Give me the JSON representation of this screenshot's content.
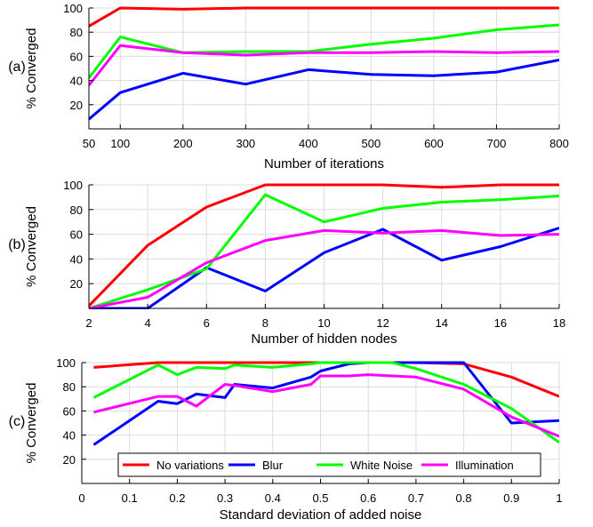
{
  "chart_data": [
    {
      "type": "line",
      "panel_label": "(a)",
      "xlabel": "Number of iterations",
      "ylabel": "% Converged",
      "xlim": [
        50,
        800
      ],
      "ylim": [
        0,
        100
      ],
      "xticks": [
        50,
        100,
        200,
        300,
        400,
        500,
        600,
        700,
        800
      ],
      "yticks": [
        20,
        40,
        60,
        80,
        100
      ],
      "grid": true,
      "x": [
        50,
        100,
        200,
        300,
        400,
        500,
        600,
        700,
        800
      ],
      "series": [
        {
          "name": "No variations",
          "color": "#ff0000",
          "values": [
            85,
            100,
            99,
            100,
            100,
            100,
            100,
            100,
            100
          ]
        },
        {
          "name": "Blur",
          "color": "#0000ff",
          "values": [
            8,
            30,
            46,
            37,
            49,
            45,
            44,
            47,
            57
          ]
        },
        {
          "name": "White Noise",
          "color": "#00ff00",
          "values": [
            42,
            76,
            63,
            64,
            64,
            70,
            75,
            82,
            86
          ]
        },
        {
          "name": "Illumination",
          "color": "#ff00ff",
          "values": [
            36,
            69,
            63,
            61,
            63,
            63,
            64,
            63,
            64
          ]
        }
      ]
    },
    {
      "type": "line",
      "panel_label": "(b)",
      "xlabel": "Number of hidden nodes",
      "ylabel": "% Converged",
      "xlim": [
        2,
        18
      ],
      "ylim": [
        0,
        100
      ],
      "xticks": [
        2,
        4,
        6,
        8,
        10,
        12,
        14,
        16,
        18
      ],
      "yticks": [
        20,
        40,
        60,
        80,
        100
      ],
      "grid": true,
      "x": [
        2,
        4,
        6,
        8,
        10,
        12,
        14,
        16,
        18
      ],
      "series": [
        {
          "name": "No variations",
          "color": "#ff0000",
          "values": [
            2,
            51,
            82,
            100,
            100,
            100,
            98,
            100,
            100
          ]
        },
        {
          "name": "Blur",
          "color": "#0000ff",
          "values": [
            0,
            0,
            33,
            14,
            45,
            64,
            39,
            50,
            65
          ]
        },
        {
          "name": "White Noise",
          "color": "#00ff00",
          "values": [
            0,
            15,
            32,
            92,
            70,
            81,
            86,
            88,
            91
          ]
        },
        {
          "name": "Illumination",
          "color": "#ff00ff",
          "values": [
            0,
            9,
            37,
            55,
            63,
            61,
            63,
            59,
            60
          ]
        }
      ]
    },
    {
      "type": "line",
      "panel_label": "(c)",
      "xlabel": "Standard deviation of added noise",
      "ylabel": "% Converged",
      "xlim": [
        0,
        1
      ],
      "ylim": [
        0,
        100
      ],
      "xticks": [
        0,
        0.1,
        0.2,
        0.3,
        0.4,
        0.5,
        0.6,
        0.7,
        0.8,
        0.9,
        1
      ],
      "xtick_labels": [
        "0",
        "0.1",
        "0.2",
        "0.3",
        "0.4",
        "0.5",
        "0.6",
        "0.7",
        "0.8",
        "0.9",
        "1"
      ],
      "yticks": [
        20,
        40,
        60,
        80,
        100
      ],
      "grid": true,
      "legend": "bottom",
      "x": [
        0.025,
        0.16,
        0.2,
        0.24,
        0.3,
        0.32,
        0.4,
        0.48,
        0.5,
        0.56,
        0.6,
        0.65,
        0.7,
        0.8,
        0.9,
        1.0
      ],
      "series": [
        {
          "name": "No variations",
          "color": "#ff0000",
          "values": [
            96,
            100,
            100,
            100,
            100,
            100,
            100,
            100,
            100,
            100,
            100,
            100,
            100,
            99,
            88,
            72
          ]
        },
        {
          "name": "Blur",
          "color": "#0000ff",
          "values": [
            32,
            68,
            66,
            74,
            71,
            82,
            79,
            88,
            93,
            99,
            100,
            100,
            100,
            100,
            50,
            52
          ]
        },
        {
          "name": "White Noise",
          "color": "#00ff00",
          "values": [
            71,
            98,
            90,
            96,
            95,
            98,
            96,
            99,
            100,
            100,
            100,
            100,
            95,
            82,
            62,
            34
          ]
        },
        {
          "name": "Illumination",
          "color": "#ff00ff",
          "values": [
            59,
            72,
            72,
            64,
            82,
            81,
            76,
            82,
            89,
            89,
            90,
            89,
            88,
            78,
            55,
            39
          ]
        }
      ]
    }
  ]
}
